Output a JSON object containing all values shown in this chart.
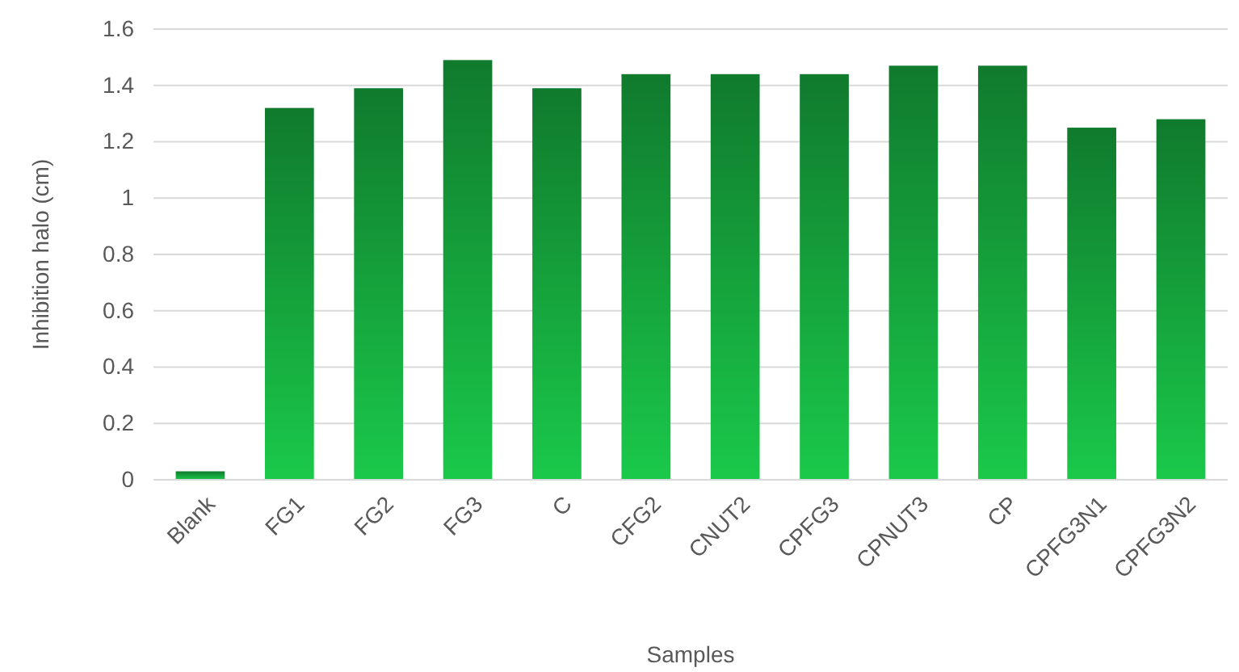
{
  "chart_data": {
    "type": "bar",
    "xlabel": "Samples",
    "ylabel": "Inhibition halo (cm)",
    "categories": [
      "Blank",
      "FG1",
      "FG2",
      "FG3",
      "C",
      "CFG2",
      "CNUT2",
      "CPFG3",
      "CPNUT3",
      "CP",
      "CPFG3N1",
      "CPFG3N2"
    ],
    "values": [
      0.03,
      1.32,
      1.39,
      1.49,
      1.39,
      1.44,
      1.44,
      1.44,
      1.47,
      1.47,
      1.25,
      1.28
    ],
    "color": "#16a83e",
    "ylim": [
      0,
      1.6
    ],
    "yticks": [
      0,
      0.2,
      0.4,
      0.6,
      0.8,
      1,
      1.2,
      1.4,
      1.6
    ],
    "grid": "y"
  }
}
